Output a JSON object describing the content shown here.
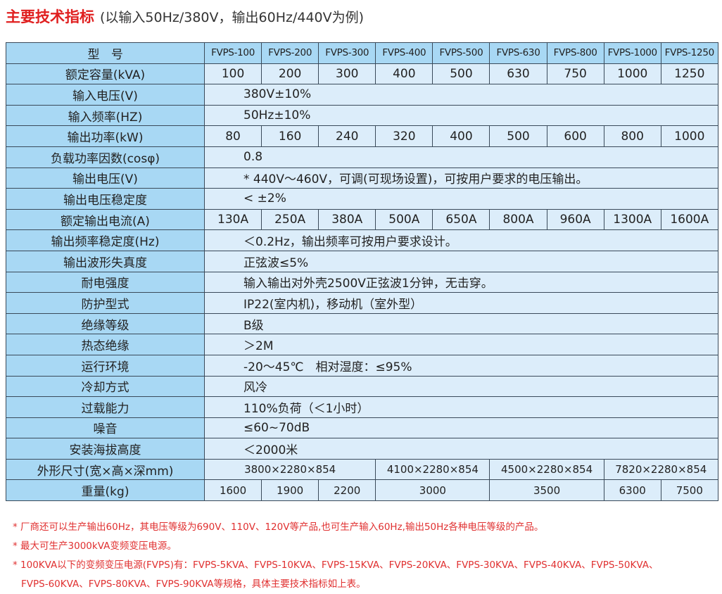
{
  "header": {
    "title": "主要技术指标",
    "subtitle": "(以输入50Hz/380V，输出60Hz/440V为例)"
  },
  "table": {
    "header": [
      "型　号",
      "FVPS-100",
      "FVPS-200",
      "FVPS-300",
      "FVPS-400",
      "FVPS-500",
      "FVPS-630",
      "FVPS-800",
      "FVPS-1000",
      "FVPS-1250"
    ],
    "rows": [
      {
        "label": "额定容量(kVA)",
        "cells": [
          "100",
          "200",
          "300",
          "400",
          "500",
          "630",
          "750",
          "1000",
          "1250"
        ]
      },
      {
        "label": "输入电压(V)",
        "cells": [
          "380V±10%"
        ]
      },
      {
        "label": "输入频率(HZ)",
        "cells": [
          "50Hz±10%"
        ]
      },
      {
        "label": "输出功率(kW)",
        "cells": [
          "80",
          "160",
          "240",
          "320",
          "400",
          "500",
          "600",
          "800",
          "1000"
        ]
      },
      {
        "label": "负载功率因数(cosφ)",
        "cells": [
          "0.8"
        ]
      },
      {
        "label": "输出电压(V)",
        "cells": [
          "* 440V～460V，可调(可现场设置)，可按用户要求的电压输出。"
        ]
      },
      {
        "label": "输出电压稳定度",
        "cells": [
          "< ±2%"
        ]
      },
      {
        "label": "额定输出电流(A)",
        "cells": [
          "130A",
          "250A",
          "380A",
          "500A",
          "650A",
          "800A",
          "960A",
          "1300A",
          "1600A"
        ]
      },
      {
        "label": "输出频率稳定度(Hz)",
        "cells": [
          "＜0.2Hz，输出频率可按用户要求设计。"
        ]
      },
      {
        "label": "输出波形失真度",
        "cells": [
          "正弦波≤5%"
        ]
      },
      {
        "label": "耐电强度",
        "cells": [
          "输入输出对外壳2500V正弦波1分钟，无击穿。"
        ]
      },
      {
        "label": "防护型式",
        "cells": [
          "IP22(室内机)，移动机（室外型）"
        ]
      },
      {
        "label": "绝缘等级",
        "cells": [
          "B级"
        ]
      },
      {
        "label": "热态绝缘",
        "cells": [
          "＞2M"
        ]
      },
      {
        "label": "运行环境",
        "cells": [
          "-20～45℃　相对湿度：≤95%"
        ]
      },
      {
        "label": "冷却方式",
        "cells": [
          "风冷"
        ]
      },
      {
        "label": "过载能力",
        "cells": [
          "110%负荷（＜1小时）"
        ]
      },
      {
        "label": "噪音",
        "cells": [
          "≤60~70dB"
        ]
      },
      {
        "label": "安装海拔高度",
        "cells": [
          "＜2000米"
        ]
      },
      {
        "label": "外形尺寸(宽×高×深mm)",
        "cells": [
          "3800×2280×854",
          "4100×2280×854",
          "4500×2280×854",
          "7820×2280×854"
        ]
      },
      {
        "label": "重量(kg)",
        "cells": [
          "1600",
          "1900",
          "2200",
          "3000",
          "3500",
          "6300",
          "7500"
        ]
      }
    ]
  },
  "notes": [
    "* 厂商还可以生产输出60Hz，其电压等级为690V、110V、120V等产品,也可生产输入60Hz,输出50Hz各种电压等级的产品。",
    "* 最大可生产3000kVA变频变压电源。",
    "* 100KVA以下的变频变压电源(FVPS)有：FVPS-5KVA、FVPS-10KVA、FVPS-15KVA、FVPS-20KVA、FVPS-30KVA、FVPS-40KVA、FVPS-50KVA、FVPS-60KVA、FVPS-80KVA、FVPS-90KVA等规格，具体主要技术指标如上表。"
  ]
}
